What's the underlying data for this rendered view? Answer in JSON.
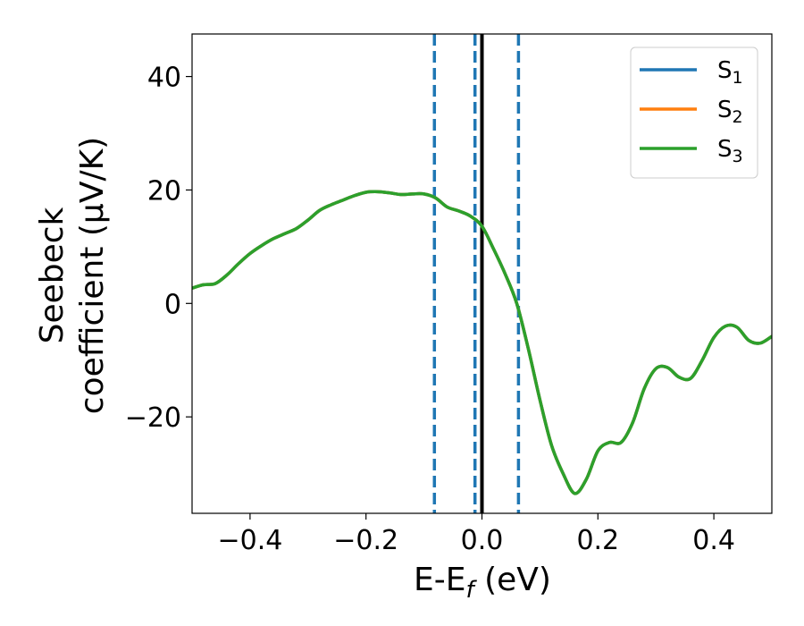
{
  "chart_data": {
    "type": "line",
    "title": "",
    "xlabel": {
      "main": "E-E",
      "sub": "f",
      "unit": " (eV)"
    },
    "ylabel": {
      "line1": "Seebeck",
      "line2": "coefficient  (μV/K)"
    },
    "xlim": [
      -0.5,
      0.5
    ],
    "ylim": [
      -37,
      47.5
    ],
    "xticks": [
      -0.4,
      -0.2,
      0.0,
      0.2,
      0.4
    ],
    "xtick_labels": [
      "−0.4",
      "−0.2",
      "0.0",
      "0.2",
      "0.4"
    ],
    "yticks": [
      -20,
      0,
      20,
      40
    ],
    "ytick_labels": [
      "−20",
      "0",
      "20",
      "40"
    ],
    "grid": false,
    "legend_position": "top-right",
    "colors": {
      "S1": "#1f77b4",
      "S2": "#ff7f0e",
      "S3": "#2ca02c",
      "vline": "#000000",
      "dashed": "#1f77b4"
    },
    "vertical_lines": [
      {
        "x": -0.082,
        "style": "dashed",
        "color": "#1f77b4"
      },
      {
        "x": -0.012,
        "style": "dashed",
        "color": "#1f77b4"
      },
      {
        "x": 0.0,
        "style": "solid",
        "color": "#000000"
      },
      {
        "x": 0.063,
        "style": "dashed",
        "color": "#1f77b4"
      }
    ],
    "x": [
      -0.5,
      -0.48,
      -0.46,
      -0.44,
      -0.42,
      -0.4,
      -0.38,
      -0.36,
      -0.34,
      -0.32,
      -0.3,
      -0.28,
      -0.26,
      -0.24,
      -0.22,
      -0.2,
      -0.18,
      -0.16,
      -0.14,
      -0.12,
      -0.1,
      -0.08,
      -0.06,
      -0.04,
      -0.02,
      0.0,
      0.02,
      0.04,
      0.06,
      0.08,
      0.1,
      0.12,
      0.14,
      0.16,
      0.18,
      0.2,
      0.22,
      0.24,
      0.26,
      0.28,
      0.3,
      0.32,
      0.34,
      0.36,
      0.38,
      0.4,
      0.42,
      0.44,
      0.46,
      0.48,
      0.5
    ],
    "series": [
      {
        "name": "S",
        "sub": "1",
        "color": "#1f77b4",
        "values": [
          2.7,
          3.3,
          3.5,
          5.0,
          7.0,
          8.8,
          10.2,
          11.4,
          12.3,
          13.2,
          14.7,
          16.4,
          17.4,
          18.2,
          19.0,
          19.6,
          19.7,
          19.5,
          19.2,
          19.3,
          19.3,
          18.6,
          17.0,
          16.3,
          15.4,
          13.6,
          9.6,
          5.2,
          0.0,
          -8.0,
          -17.0,
          -25.0,
          -30.0,
          -33.5,
          -31.0,
          -26.0,
          -24.5,
          -24.5,
          -21.0,
          -15.0,
          -11.5,
          -11.3,
          -13.0,
          -13.2,
          -10.0,
          -6.0,
          -4.0,
          -4.2,
          -6.5,
          -7.0,
          -5.8
        ]
      },
      {
        "name": "S",
        "sub": "2",
        "color": "#ff7f0e",
        "values": [
          2.7,
          3.3,
          3.5,
          5.0,
          7.0,
          8.8,
          10.2,
          11.4,
          12.3,
          13.2,
          14.7,
          16.4,
          17.4,
          18.2,
          19.0,
          19.6,
          19.7,
          19.5,
          19.2,
          19.3,
          19.3,
          18.6,
          17.0,
          16.3,
          15.4,
          13.6,
          9.6,
          5.2,
          0.0,
          -8.0,
          -17.0,
          -25.0,
          -30.0,
          -33.5,
          -31.0,
          -26.0,
          -24.5,
          -24.5,
          -21.0,
          -15.0,
          -11.5,
          -11.3,
          -13.0,
          -13.2,
          -10.0,
          -6.0,
          -4.0,
          -4.2,
          -6.5,
          -7.0,
          -5.8
        ]
      },
      {
        "name": "S",
        "sub": "3",
        "color": "#2ca02c",
        "values": [
          2.7,
          3.3,
          3.5,
          5.0,
          7.0,
          8.8,
          10.2,
          11.4,
          12.3,
          13.2,
          14.7,
          16.4,
          17.4,
          18.2,
          19.0,
          19.6,
          19.7,
          19.5,
          19.2,
          19.3,
          19.3,
          18.6,
          17.0,
          16.3,
          15.4,
          13.6,
          9.6,
          5.2,
          0.0,
          -8.0,
          -17.0,
          -25.0,
          -30.0,
          -33.5,
          -31.0,
          -26.0,
          -24.5,
          -24.5,
          -21.0,
          -15.0,
          -11.5,
          -11.3,
          -13.0,
          -13.2,
          -10.0,
          -6.0,
          -4.0,
          -4.2,
          -6.5,
          -7.0,
          -5.8
        ]
      }
    ]
  }
}
